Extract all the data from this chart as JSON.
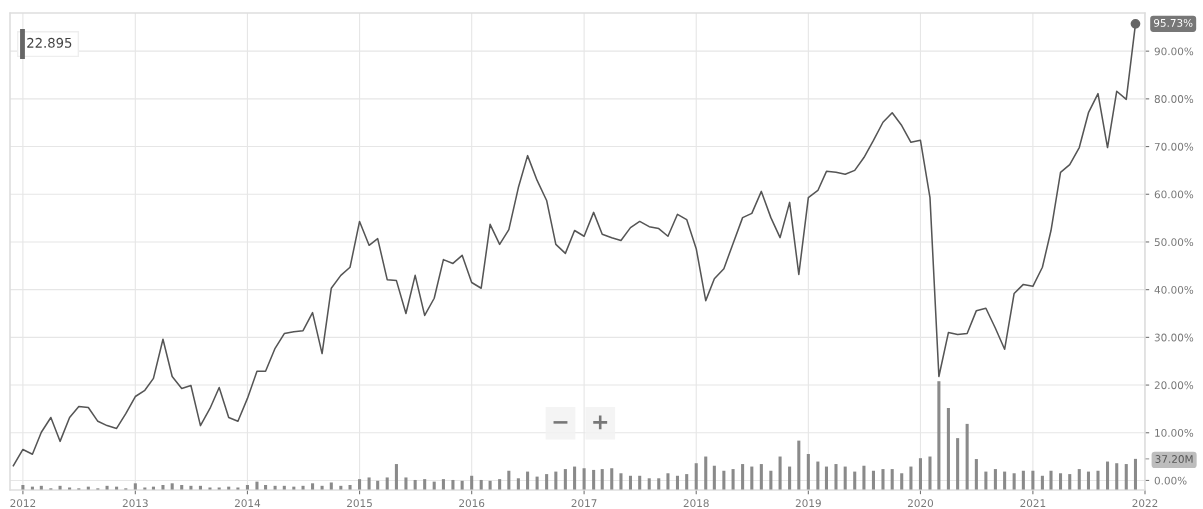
{
  "chart_data": {
    "type": "line",
    "series": [
      {
        "color": "#555555",
        "x": [
          "2011-12",
          "2012-01",
          "2012-02",
          "2012-03",
          "2012-04",
          "2012-05",
          "2012-06",
          "2012-07",
          "2012-08",
          "2012-09",
          "2012-10",
          "2012-11",
          "2012-12",
          "2013-01",
          "2013-02",
          "2013-03",
          "2013-04",
          "2013-05",
          "2013-06",
          "2013-07",
          "2013-08",
          "2013-09",
          "2013-10",
          "2013-11",
          "2013-12",
          "2014-01",
          "2014-02",
          "2014-03",
          "2014-04",
          "2014-05",
          "2014-06",
          "2014-07",
          "2014-08",
          "2014-09",
          "2014-10",
          "2014-11",
          "2014-12",
          "2015-01",
          "2015-02",
          "2015-03",
          "2015-04",
          "2015-05",
          "2015-06",
          "2015-07",
          "2015-08",
          "2015-09",
          "2015-10",
          "2015-11",
          "2015-12",
          "2016-01",
          "2016-02",
          "2016-03",
          "2016-04",
          "2016-05",
          "2016-06",
          "2016-07",
          "2016-08",
          "2016-09",
          "2016-10",
          "2016-11",
          "2016-12",
          "2017-01",
          "2017-02",
          "2017-03",
          "2017-04",
          "2017-05",
          "2017-06",
          "2017-07",
          "2017-08",
          "2017-09",
          "2017-10",
          "2017-11",
          "2017-12",
          "2018-01",
          "2018-02",
          "2018-03",
          "2018-04",
          "2018-05",
          "2018-06",
          "2018-07",
          "2018-08",
          "2018-09",
          "2018-10",
          "2018-11",
          "2018-12",
          "2019-01",
          "2019-02",
          "2019-03",
          "2019-04",
          "2019-05",
          "2019-06",
          "2019-07",
          "2019-08",
          "2019-09",
          "2019-10",
          "2019-11",
          "2019-12",
          "2020-01",
          "2020-02",
          "2020-03",
          "2020-04",
          "2020-05",
          "2020-06",
          "2020-07",
          "2020-08",
          "2020-09",
          "2020-10",
          "2020-11",
          "2020-12",
          "2021-01",
          "2021-02",
          "2021-03",
          "2021-04",
          "2021-05",
          "2021-06",
          "2021-07",
          "2021-08",
          "2021-09",
          "2021-10",
          "2021-11",
          "2021-12"
        ],
        "values": [
          3.1,
          6.5,
          5.5,
          10.1,
          13.2,
          8.2,
          13.2,
          15.5,
          15.3,
          12.4,
          11.5,
          10.9,
          14.0,
          17.6,
          18.9,
          21.4,
          29.6,
          21.8,
          19.3,
          19.9,
          11.5,
          15.1,
          19.5,
          13.2,
          12.4,
          17.2,
          22.9,
          22.9,
          27.7,
          30.8,
          31.2,
          31.4,
          35.2,
          26.6,
          40.3,
          43.0,
          44.7,
          54.3,
          49.3,
          50.7,
          42.1,
          41.9,
          35.0,
          43.0,
          34.6,
          38.2,
          46.3,
          45.5,
          47.2,
          41.5,
          40.3,
          53.7,
          49.5,
          52.6,
          61.4,
          68.1,
          62.9,
          58.7,
          49.5,
          47.6,
          52.4,
          51.2,
          56.2,
          51.6,
          50.9,
          50.3,
          53.0,
          54.3,
          53.2,
          52.8,
          51.2,
          55.8,
          54.7,
          48.6,
          37.7,
          42.3,
          44.4,
          49.7,
          55.1,
          56.0,
          60.6,
          55.1,
          50.9,
          58.3,
          43.2,
          59.3,
          60.8,
          64.8,
          64.6,
          64.2,
          65.0,
          67.7,
          71.3,
          75.1,
          77.1,
          74.4,
          70.9,
          71.3,
          59.3,
          21.8,
          31.0,
          30.6,
          30.8,
          35.6,
          36.1,
          31.9,
          27.5,
          39.2,
          41.1,
          40.7,
          44.7,
          52.4,
          64.6,
          66.2,
          69.8,
          77.1,
          81.1,
          69.8,
          81.6,
          79.9,
          95.73
        ]
      },
      {
        "type": "bar",
        "axis": "y2",
        "color": "#8a8a8a",
        "x": [
          "2012-01",
          "2012-02",
          "2012-03",
          "2012-04",
          "2012-05",
          "2012-06",
          "2012-07",
          "2012-08",
          "2012-09",
          "2012-10",
          "2012-11",
          "2012-12",
          "2013-01",
          "2013-02",
          "2013-03",
          "2013-04",
          "2013-05",
          "2013-06",
          "2013-07",
          "2013-08",
          "2013-09",
          "2013-10",
          "2013-11",
          "2013-12",
          "2014-01",
          "2014-02",
          "2014-03",
          "2014-04",
          "2014-05",
          "2014-06",
          "2014-07",
          "2014-08",
          "2014-09",
          "2014-10",
          "2014-11",
          "2014-12",
          "2015-01",
          "2015-02",
          "2015-03",
          "2015-04",
          "2015-05",
          "2015-06",
          "2015-07",
          "2015-08",
          "2015-09",
          "2015-10",
          "2015-11",
          "2015-12",
          "2016-01",
          "2016-02",
          "2016-03",
          "2016-04",
          "2016-05",
          "2016-06",
          "2016-07",
          "2016-08",
          "2016-09",
          "2016-10",
          "2016-11",
          "2016-12",
          "2017-01",
          "2017-02",
          "2017-03",
          "2017-04",
          "2017-05",
          "2017-06",
          "2017-07",
          "2017-08",
          "2017-09",
          "2017-10",
          "2017-11",
          "2017-12",
          "2018-01",
          "2018-02",
          "2018-03",
          "2018-04",
          "2018-05",
          "2018-06",
          "2018-07",
          "2018-08",
          "2018-09",
          "2018-10",
          "2018-11",
          "2018-12",
          "2019-01",
          "2019-02",
          "2019-03",
          "2019-04",
          "2019-05",
          "2019-06",
          "2019-07",
          "2019-08",
          "2019-09",
          "2019-10",
          "2019-11",
          "2019-12",
          "2020-01",
          "2020-02",
          "2020-03",
          "2020-04",
          "2020-05",
          "2020-06",
          "2020-07",
          "2020-08",
          "2020-09",
          "2020-10",
          "2020-11",
          "2020-12",
          "2021-01",
          "2021-02",
          "2021-03",
          "2021-04",
          "2021-05",
          "2021-06",
          "2021-07",
          "2021-08",
          "2021-09",
          "2021-10",
          "2021-11",
          "2021-12"
        ],
        "values": [
          6,
          4,
          5,
          2,
          5,
          3,
          2,
          4,
          2,
          5,
          4,
          2,
          8,
          3,
          4,
          6,
          8,
          6,
          5,
          5,
          3,
          3,
          4,
          3,
          6,
          10,
          6,
          5,
          5,
          4,
          5,
          8,
          5,
          9,
          5,
          6,
          13,
          15,
          11,
          15,
          31,
          15,
          12,
          13,
          10,
          13,
          12,
          11,
          17,
          12,
          11,
          13,
          23,
          14,
          22,
          16,
          19,
          22,
          25,
          28,
          26,
          24,
          25,
          26,
          20,
          17,
          17,
          14,
          14,
          20,
          17,
          19,
          32,
          40,
          29,
          23,
          25,
          31,
          28,
          31,
          23,
          40,
          28,
          59,
          43,
          34,
          28,
          31,
          28,
          22,
          29,
          23,
          25,
          25,
          20,
          28,
          38,
          40,
          130,
          98,
          62,
          79,
          37,
          22,
          25,
          22,
          20,
          23,
          23,
          17,
          23,
          20,
          19,
          25,
          22,
          23,
          34,
          32,
          31,
          37.2
        ]
      }
    ],
    "xlim": [
      "2011-11-20",
      "2022-01-01"
    ],
    "xticks": [
      "2012",
      "2013",
      "2014",
      "2015",
      "2016",
      "2017",
      "2018",
      "2019",
      "2020",
      "2021",
      "2022"
    ],
    "ylim": [
      -2,
      98
    ],
    "yticks": [
      {
        "value": 0,
        "label": "0.00%"
      },
      {
        "value": 10,
        "label": "10.00%"
      },
      {
        "value": 20,
        "label": "20.00%"
      },
      {
        "value": 30,
        "label": "30.00%"
      },
      {
        "value": 40,
        "label": "40.00%"
      },
      {
        "value": 50,
        "label": "50.00%"
      },
      {
        "value": 60,
        "label": "60.00%"
      },
      {
        "value": 70,
        "label": "70.00%"
      },
      {
        "value": 80,
        "label": "80.00%"
      },
      {
        "value": 90,
        "label": "90.00%"
      }
    ],
    "y2lim": [
      0,
      570
    ],
    "y2ticks": [
      {
        "value": 37.2,
        "label": "37.20M"
      }
    ],
    "grid": true,
    "annotations": [
      "22.895",
      {
        "text": "95.73%",
        "x": "2021-12",
        "y": 95.73
      },
      "−",
      "+"
    ]
  }
}
